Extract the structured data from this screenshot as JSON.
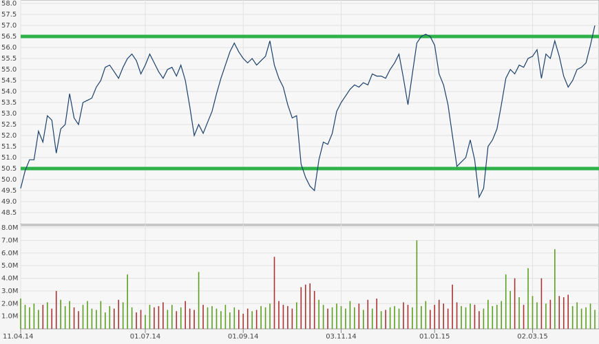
{
  "chart_data": [
    {
      "type": "line",
      "color": "#1a3f6b",
      "level_color": "#2db34a",
      "levels": [
        56.5,
        50.5
      ],
      "grid": true,
      "ylim": [
        48,
        58
      ],
      "yticks": [
        {
          "value": 48.5,
          "label": "48.5"
        },
        {
          "value": 49,
          "label": "49.0"
        },
        {
          "value": 49.5,
          "label": "49.5"
        },
        {
          "value": 50,
          "label": "50.0"
        },
        {
          "value": 50.5,
          "label": "50.5"
        },
        {
          "value": 51,
          "label": "51.0"
        },
        {
          "value": 51.5,
          "label": "51.5"
        },
        {
          "value": 52,
          "label": "52.0"
        },
        {
          "value": 52.5,
          "label": "52.5"
        },
        {
          "value": 53,
          "label": "53.0"
        },
        {
          "value": 53.5,
          "label": "53.5"
        },
        {
          "value": 54,
          "label": "54.0"
        },
        {
          "value": 54.5,
          "label": "54.5"
        },
        {
          "value": 55,
          "label": "55.0"
        },
        {
          "value": 55.5,
          "label": "55.5"
        },
        {
          "value": 56,
          "label": "56.0"
        },
        {
          "value": 56.5,
          "label": "56.5"
        },
        {
          "value": 57,
          "label": "57.0"
        },
        {
          "value": 57.5,
          "label": "57.5"
        },
        {
          "value": 58,
          "label": "58.0"
        }
      ],
      "values": [
        49.6,
        50.4,
        50.9,
        50.9,
        52.2,
        51.7,
        52.9,
        52.7,
        51.2,
        52.3,
        52.5,
        53.9,
        52.8,
        52.5,
        53.5,
        53.6,
        53.7,
        54.2,
        54.5,
        55.1,
        55.2,
        54.9,
        54.6,
        55.1,
        55.5,
        55.7,
        55.4,
        54.8,
        55.2,
        55.7,
        55.3,
        54.9,
        54.6,
        55.0,
        55.1,
        54.7,
        55.2,
        54.5,
        53.3,
        52.0,
        52.5,
        52.1,
        52.6,
        53.1,
        53.9,
        54.6,
        55.2,
        55.8,
        56.2,
        55.8,
        55.5,
        55.3,
        55.5,
        55.2,
        55.4,
        55.6,
        56.3,
        55.2,
        54.6,
        54.2,
        53.4,
        52.8,
        52.9,
        50.7,
        50.1,
        49.7,
        49.5,
        50.9,
        51.7,
        51.6,
        52.1,
        53.1,
        53.5,
        53.8,
        54.1,
        54.3,
        54.2,
        54.4,
        54.3,
        54.8,
        54.7,
        54.7,
        54.6,
        55.0,
        55.3,
        55.7,
        54.6,
        53.4,
        54.8,
        56.2,
        56.5,
        56.6,
        56.5,
        56.1,
        54.8,
        54.3,
        53.4,
        52.0,
        50.6,
        50.8,
        51.0,
        51.8,
        50.9,
        49.2,
        49.6,
        51.5,
        51.8,
        52.3,
        53.4,
        54.6,
        55.0,
        54.8,
        55.2,
        55.1,
        55.5,
        55.6,
        55.9,
        54.6,
        55.7,
        55.5,
        56.3,
        55.6,
        54.7,
        54.2,
        54.5,
        55.0,
        55.1,
        55.3,
        56.1,
        57.0
      ]
    },
    {
      "type": "bar",
      "up_color": "#5a9e1e",
      "down_color": "#a83232",
      "grid": true,
      "ylim": [
        0,
        8000000
      ],
      "yticks": [
        {
          "value": 1000000,
          "label": "1.0M"
        },
        {
          "value": 2000000,
          "label": "2.0M"
        },
        {
          "value": 3000000,
          "label": "3.0M"
        },
        {
          "value": 4000000,
          "label": "4.0M"
        },
        {
          "value": 5000000,
          "label": "5.0M"
        },
        {
          "value": 6000000,
          "label": "6.0M"
        },
        {
          "value": 7000000,
          "label": "7.0M"
        },
        {
          "value": 8000000,
          "label": "8.0M"
        }
      ],
      "xlim": [
        0,
        129
      ],
      "xticks": [
        {
          "value": 0,
          "label": "11.04.14"
        },
        {
          "value": 28,
          "label": "01.07.14"
        },
        {
          "value": 50,
          "label": "01.09.14"
        },
        {
          "value": 72,
          "label": "03.11.14"
        },
        {
          "value": 93,
          "label": "01.01.15"
        },
        {
          "value": 115,
          "label": "02.03.15"
        }
      ],
      "values": [
        2400000,
        1900000,
        1700000,
        2000000,
        1500000,
        1900000,
        2100000,
        1600000,
        3000000,
        2300000,
        1800000,
        2200000,
        1700000,
        1400000,
        1900000,
        2200000,
        1600000,
        1500000,
        2200000,
        1300000,
        1800000,
        1600000,
        2300000,
        2100000,
        4300000,
        1700000,
        1300000,
        1500000,
        1100000,
        1900000,
        1700000,
        1800000,
        2100000,
        1500000,
        1900000,
        1400000,
        1700000,
        2200000,
        1600000,
        1500000,
        4500000,
        1900000,
        1700000,
        1800000,
        1600000,
        1400000,
        1900000,
        1300000,
        1700000,
        1500000,
        1200000,
        1600000,
        1400000,
        1500000,
        1800000,
        1700000,
        2000000,
        5700000,
        2200000,
        1900000,
        1800000,
        1600000,
        2100000,
        3300000,
        3500000,
        3600000,
        3000000,
        2300000,
        1900000,
        1600000,
        1700000,
        2000000,
        1800000,
        1600000,
        2200000,
        1700000,
        2000000,
        1500000,
        2300000,
        1600000,
        2400000,
        1400000,
        1500000,
        1700000,
        1800000,
        1600000,
        2100000,
        1900000,
        1700000,
        7000000,
        1800000,
        2200000,
        1500000,
        1900000,
        2300000,
        2000000,
        1600000,
        3500000,
        2100000,
        1800000,
        1700000,
        2000000,
        1900000,
        1400000,
        1600000,
        2300000,
        1800000,
        1900000,
        2200000,
        4300000,
        3000000,
        4000000,
        2500000,
        1900000,
        4800000,
        2600000,
        2100000,
        4000000,
        2000000,
        2300000,
        6300000,
        2600000,
        2500000,
        2700000,
        1800000,
        2100000,
        1600000,
        1700000,
        2000000,
        1500000
      ]
    }
  ]
}
